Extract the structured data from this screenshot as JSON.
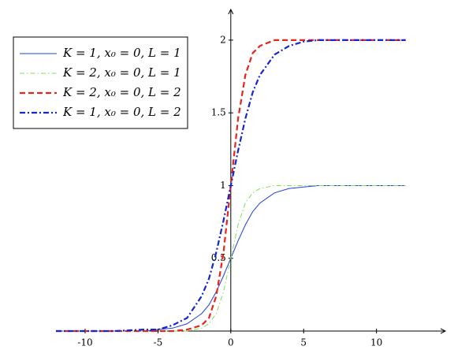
{
  "chart_data": {
    "type": "line",
    "x": [
      -12,
      -10,
      -8,
      -6,
      -5,
      -4,
      -3,
      -2,
      -1.5,
      -1,
      -0.5,
      0,
      0.5,
      1,
      1.5,
      2,
      3,
      4,
      5,
      6,
      8,
      10,
      12
    ],
    "series": [
      {
        "name": "K = 1, x₀ = 0, L = 1",
        "color": "#1f3fd8",
        "style": "solid",
        "values": [
          0,
          0,
          0,
          0,
          0.01,
          0.02,
          0.05,
          0.12,
          0.18,
          0.27,
          0.38,
          0.5,
          0.62,
          0.73,
          0.82,
          0.88,
          0.95,
          0.98,
          0.99,
          1,
          1,
          1,
          1
        ]
      },
      {
        "name": "K = 2, x₀ = 0, L = 1",
        "color": "#7ee05a",
        "style": "dashdot",
        "values": [
          0,
          0,
          0,
          0,
          0,
          0,
          0,
          0.02,
          0.05,
          0.12,
          0.27,
          0.5,
          0.73,
          0.88,
          0.95,
          0.98,
          1,
          1,
          1,
          1,
          1,
          1,
          1
        ]
      },
      {
        "name": "K = 2, x₀ = 0, L = 2",
        "color": "#e8241c",
        "style": "dashed",
        "values": [
          0,
          0,
          0,
          0,
          0,
          0,
          0.01,
          0.04,
          0.09,
          0.24,
          0.54,
          1,
          1.46,
          1.76,
          1.91,
          1.96,
          2,
          2,
          2,
          2,
          2,
          2,
          2
        ]
      },
      {
        "name": "K = 1, x₀ = 0, L = 2",
        "color": "#1226d6",
        "style": "thickdashdot",
        "values": [
          0,
          0,
          0,
          0.01,
          0.01,
          0.04,
          0.09,
          0.24,
          0.36,
          0.54,
          0.76,
          1,
          1.24,
          1.46,
          1.64,
          1.76,
          1.9,
          1.96,
          1.99,
          2,
          2,
          2,
          2
        ]
      }
    ],
    "xlim": [
      -12,
      14.4
    ],
    "ylim": [
      0,
      2.2
    ],
    "xticks": [
      -10,
      -5,
      0,
      5,
      10
    ],
    "yticks": [
      0.5,
      1,
      1.5,
      2
    ],
    "legend": "upper-left"
  }
}
